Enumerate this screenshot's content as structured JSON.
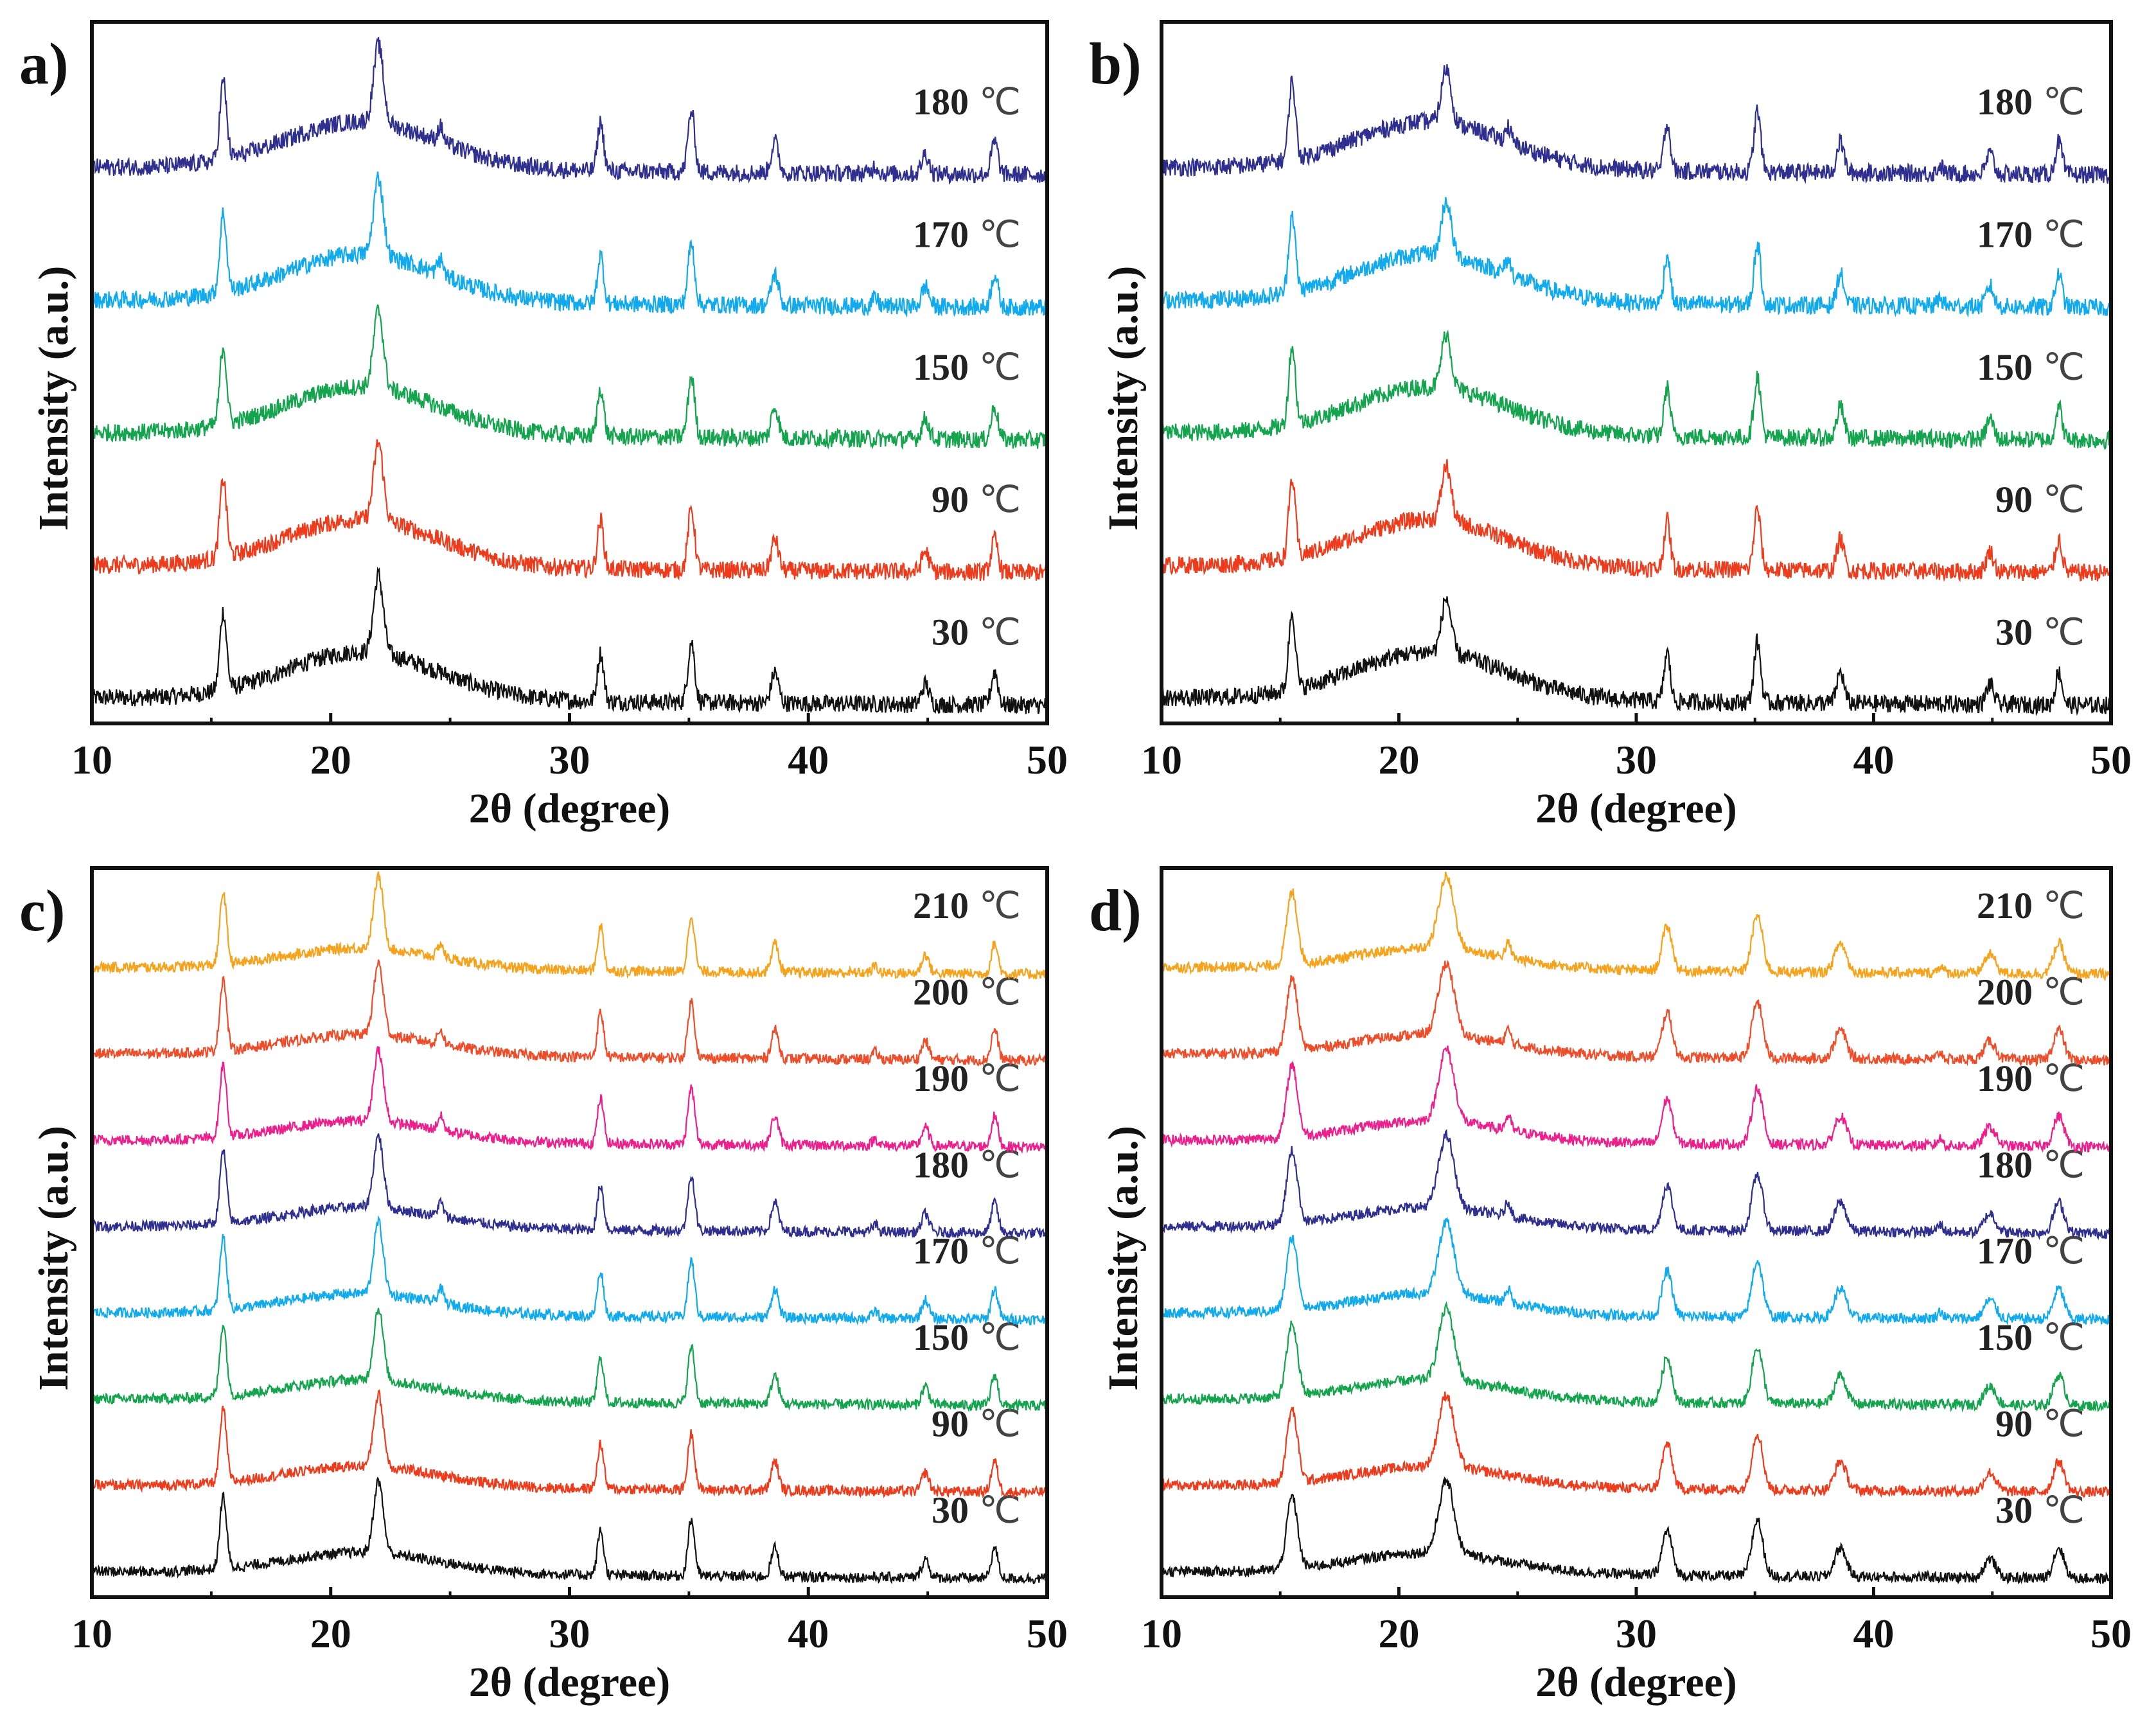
{
  "colors": {
    "30": "#111111",
    "90": "#ee3b1c",
    "150": "#14a44d",
    "170": "#11aaee",
    "180": "#2f2f8f",
    "190": "#ee1f8c",
    "200": "#ef4c29",
    "210": "#f7a21b"
  },
  "chart_data": [
    {
      "type": "line",
      "panel": "a)",
      "xlabel": "2θ (degree)",
      "ylabel": "Intensity (a.u.)",
      "xlim": [
        10,
        50
      ],
      "xticks": [
        "10",
        "20",
        "30",
        "40",
        "50"
      ],
      "peaks": [
        15.5,
        22.0,
        31.3,
        35.1,
        38.6,
        44.9,
        47.8
      ],
      "series": [
        {
          "name": "30",
          "unit": "℃",
          "color_key": "30"
        },
        {
          "name": "90",
          "unit": "℃",
          "color_key": "90"
        },
        {
          "name": "150",
          "unit": "℃",
          "color_key": "150"
        },
        {
          "name": "170",
          "unit": "℃",
          "color_key": "170"
        },
        {
          "name": "180",
          "unit": "℃",
          "color_key": "180"
        }
      ]
    },
    {
      "type": "line",
      "panel": "b)",
      "xlabel": "2θ (degree)",
      "ylabel": "Intensity (a.u.)",
      "xlim": [
        10,
        50
      ],
      "xticks": [
        "10",
        "20",
        "30",
        "40",
        "50"
      ],
      "peaks": [
        15.5,
        22.0,
        31.3,
        35.1,
        38.6,
        44.9,
        47.8
      ],
      "series": [
        {
          "name": "30",
          "unit": "℃",
          "color_key": "30"
        },
        {
          "name": "90",
          "unit": "℃",
          "color_key": "90"
        },
        {
          "name": "150",
          "unit": "℃",
          "color_key": "150"
        },
        {
          "name": "170",
          "unit": "℃",
          "color_key": "170"
        },
        {
          "name": "180",
          "unit": "℃",
          "color_key": "180"
        }
      ]
    },
    {
      "type": "line",
      "panel": "c)",
      "xlabel": "2θ (degree)",
      "ylabel": "Intensity (a.u.)",
      "xlim": [
        10,
        50
      ],
      "xticks": [
        "10",
        "20",
        "30",
        "40",
        "50"
      ],
      "peaks": [
        15.5,
        22.0,
        31.3,
        35.1,
        38.6,
        44.9,
        47.8
      ],
      "series": [
        {
          "name": "30",
          "unit": "℃",
          "color_key": "30"
        },
        {
          "name": "90",
          "unit": "℃",
          "color_key": "90"
        },
        {
          "name": "150",
          "unit": "℃",
          "color_key": "150"
        },
        {
          "name": "170",
          "unit": "℃",
          "color_key": "170"
        },
        {
          "name": "180",
          "unit": "℃",
          "color_key": "180"
        },
        {
          "name": "190",
          "unit": "℃",
          "color_key": "190"
        },
        {
          "name": "200",
          "unit": "℃",
          "color_key": "200"
        },
        {
          "name": "210",
          "unit": "℃",
          "color_key": "210"
        }
      ]
    },
    {
      "type": "line",
      "panel": "d)",
      "xlabel": "2θ (degree)",
      "ylabel": "Intensity (a.u.)",
      "xlim": [
        10,
        50
      ],
      "xticks": [
        "10",
        "20",
        "30",
        "40",
        "50"
      ],
      "peaks": [
        15.5,
        22.0,
        31.3,
        35.1,
        38.6,
        44.9,
        47.8
      ],
      "series": [
        {
          "name": "30",
          "unit": "℃",
          "color_key": "30"
        },
        {
          "name": "90",
          "unit": "℃",
          "color_key": "90"
        },
        {
          "name": "150",
          "unit": "℃",
          "color_key": "150"
        },
        {
          "name": "170",
          "unit": "℃",
          "color_key": "170"
        },
        {
          "name": "180",
          "unit": "℃",
          "color_key": "180"
        },
        {
          "name": "190",
          "unit": "℃",
          "color_key": "190"
        },
        {
          "name": "200",
          "unit": "℃",
          "color_key": "200"
        },
        {
          "name": "210",
          "unit": "℃",
          "color_key": "210"
        }
      ]
    }
  ]
}
